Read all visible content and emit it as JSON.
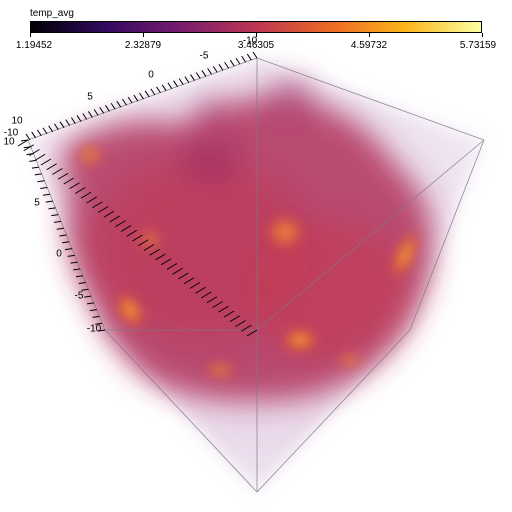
{
  "colorbar": {
    "title": "temp_avg",
    "ticks": [
      "1.19452",
      "2.32879",
      "3.46305",
      "4.59732",
      "5.73159"
    ],
    "colors": [
      "#000004",
      "#320a5e",
      "#781c6d",
      "#bc3754",
      "#ed6925",
      "#fbb61a",
      "#fcffa4"
    ]
  },
  "axes": {
    "top_axis_ticks": [
      "5",
      "0",
      "-5",
      "-10"
    ],
    "left_axis_ticks": [
      "10",
      "5",
      "0",
      "-5",
      "-10"
    ],
    "corner_labels": [
      "-10",
      "10"
    ]
  }
}
